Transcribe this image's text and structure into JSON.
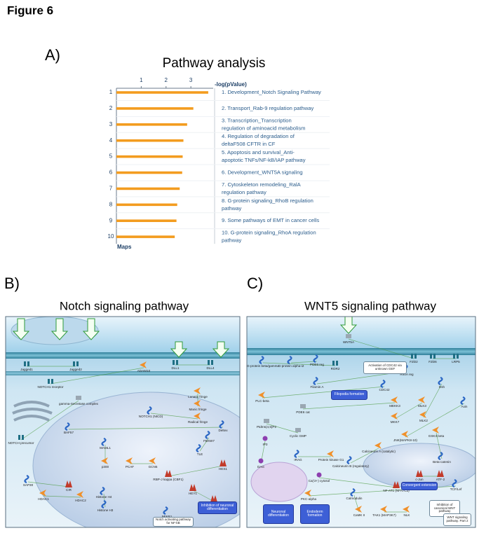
{
  "figure_title": "Figure 6",
  "panel_labels": [
    "A)",
    "B)",
    "C)"
  ],
  "chart_data": {
    "type": "bar",
    "orientation": "horizontal",
    "title": "Pathway analysis",
    "xlabel": "-log(pValue)",
    "ylabel": "Maps",
    "categories": [
      "1",
      "2",
      "3",
      "4",
      "5",
      "6",
      "7",
      "8",
      "9",
      "10"
    ],
    "category_labels": [
      [
        "1. Development_Notch Signaling Pathway"
      ],
      [
        "2. Transport_Rab-9 regulation pathway"
      ],
      [
        "3. Transcription_Transcription",
        "regulation of aminoacid metabolism"
      ],
      [
        "4. Regulation of degradation of",
        "deltaF508 CFTR in CF"
      ],
      [
        "5. Apoptosis and survival_Anti-",
        "apoptotic TNFs/NF-kB/IAP pathway"
      ],
      [
        "6. Development_WNT5A signaling"
      ],
      [
        "7. Cytoskeleton remodeling_RalA",
        "regulation pathway"
      ],
      [
        "8. G-protein signaling_RhoB regulation",
        "pathway"
      ],
      [
        "9. Some pathways of EMT in cancer cells"
      ],
      [
        "10. G-protein signaling_RhoA regulation",
        "pathway"
      ]
    ],
    "values": [
      3.7,
      3.1,
      2.85,
      2.7,
      2.67,
      2.65,
      2.55,
      2.45,
      2.42,
      2.35
    ],
    "color": "#f39c1f",
    "xlim": [
      0,
      3.9
    ],
    "xticks": [
      1,
      2,
      3
    ]
  },
  "diagrams": [
    {
      "title": "Notch signaling pathway",
      "nodes": [
        "Jagged1",
        "Jagged2",
        "DLL1",
        "DLL4",
        "ADAM10",
        "NOTCH1 receptor",
        "gamma-Secretase complex",
        "NOTCH precursor",
        "Lunatic fringe",
        "Manic fringe",
        "Radical fringe",
        "NOTCH1 (NICD)",
        "Deltex",
        "BAF57",
        "MAML1",
        "p300",
        "PCAF",
        "GCN5",
        "FBXW7",
        "TLE",
        "SAP30",
        "CIR",
        "HDAC1",
        "HDAC2",
        "Histone H4",
        "Histone H3",
        "RBP-J kappa (CBF1)",
        "HES1",
        "HEY1",
        "HEY2",
        "NFKB1"
      ],
      "processes": [
        "Inhibition of neuronal differentiation"
      ],
      "notes": [
        "Notch activating pathway for NF-kB"
      ]
    },
    {
      "title": "WNT5 signaling pathway",
      "nodes": [
        "WNT5A",
        "FZD2",
        "FZD6",
        "LRP5",
        "ROR2",
        "G-protein beta/gamma",
        "G-protein alpha-i2",
        "PDE6 reg",
        "Filamin A",
        "RhoA reg",
        "CDC42",
        "PLC-beta",
        "PDE6 cat",
        "MEKK3",
        "MLK3",
        "MKK7",
        "MLK2",
        "Dsh",
        "Axin",
        "JNK(MAPK8-10)",
        "GSK3 beta",
        "Beta-catenin",
        "PtdIns(4,5)P2",
        "Cyclic GMP",
        "IP3",
        "DAG",
        "IRAG",
        "Protein kinase G1",
        "Calcineurin A (catalytic)",
        "Calcineurin B (regulatory)",
        "Ca('2+) cytosol",
        "NF-AT1 (NFATC2)",
        "c-Jun",
        "ATF-2",
        "TCF/Lef",
        "PKC-alpha",
        "Calmodulin",
        "CaMK II",
        "TAK1 (MAP3K7)",
        "NLK"
      ],
      "processes": [
        "Filopodia formation",
        "Convergent extension",
        "Neuronal differentiation",
        "Endoderm formation"
      ],
      "notes": [
        "Activation of CDC42 via unknown GEF",
        "Inhibition of canonical WNT pathway",
        "WNT signaling pathway. Part 2"
      ]
    }
  ]
}
